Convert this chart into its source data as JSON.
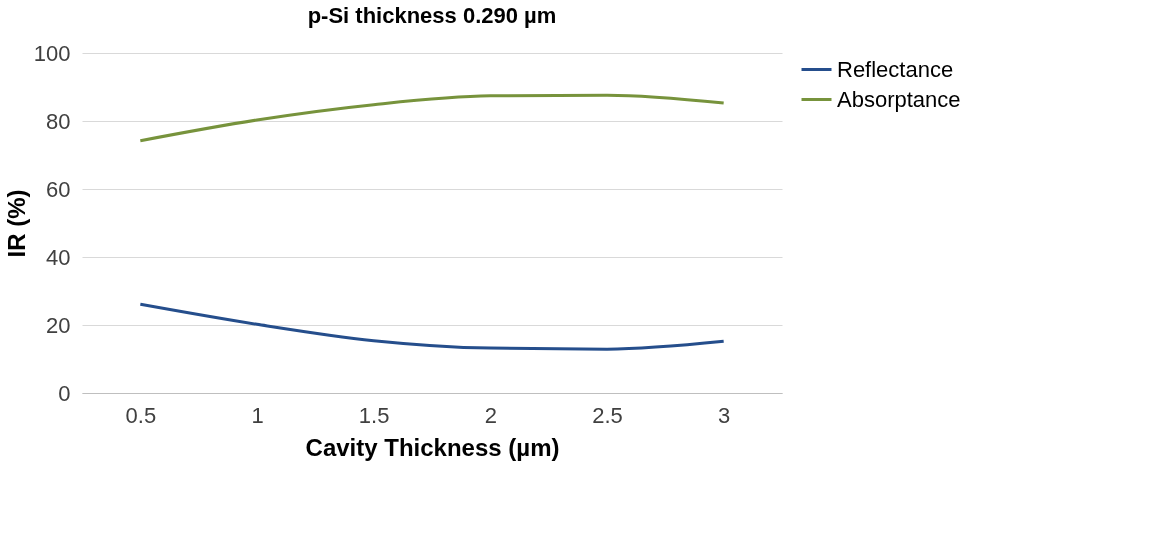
{
  "chart_data": {
    "type": "line",
    "title": "p-Si thickness 0.290 µm",
    "xlabel": "Cavity Thickness (µm)",
    "ylabel": "IR (%)",
    "categories": [
      "0.5",
      "1",
      "1.5",
      "2",
      "2.5",
      "3"
    ],
    "series": [
      {
        "name": "Reflectance",
        "color": "#254e8c",
        "values": [
          26.1,
          20.2,
          15.4,
          13.2,
          12.9,
          15.2
        ]
      },
      {
        "name": "Absorptance",
        "color": "#77933c",
        "values": [
          74.2,
          80.3,
          84.8,
          87.4,
          87.6,
          85.3
        ]
      }
    ],
    "ylim": [
      0,
      100
    ],
    "yticks": [
      0,
      20,
      40,
      60,
      80,
      100
    ],
    "grid": "y",
    "legend": "right",
    "marker": "none",
    "line_style": "solid"
  }
}
